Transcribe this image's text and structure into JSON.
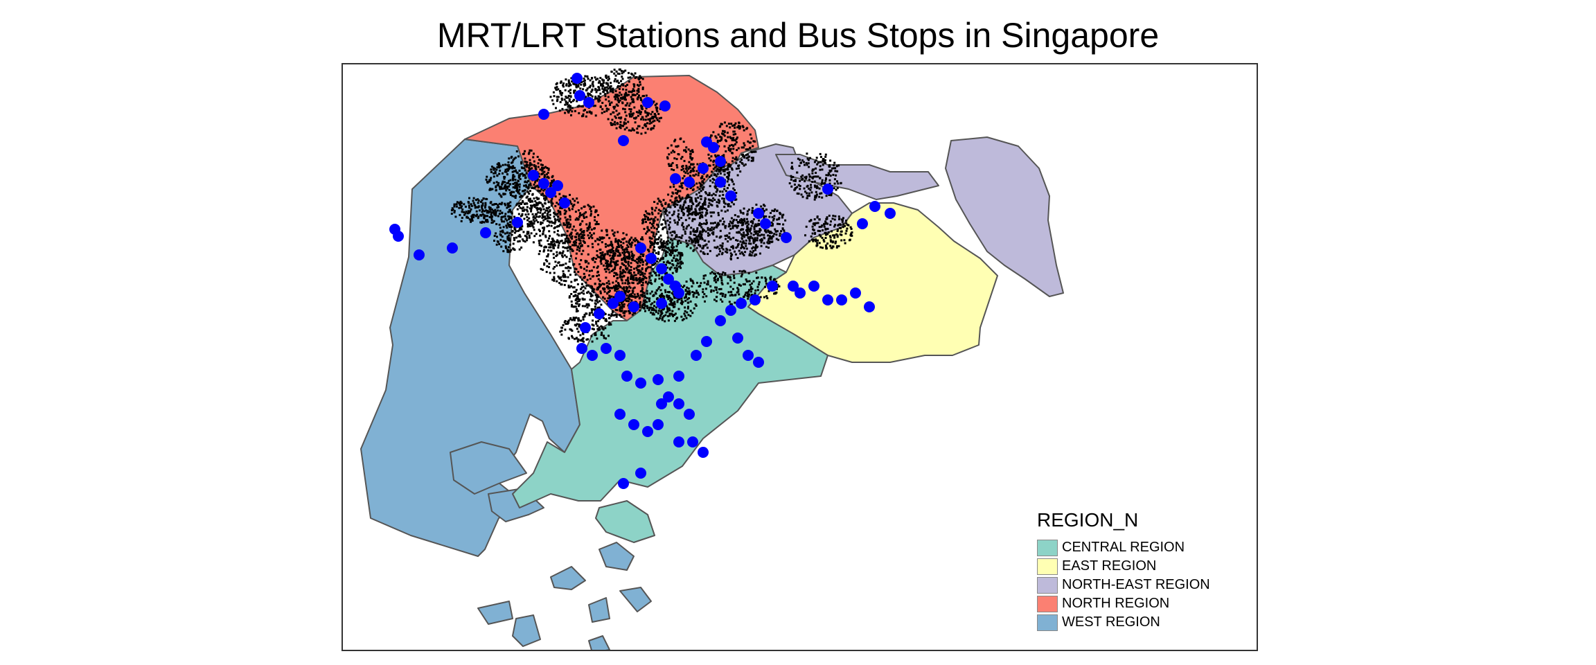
{
  "title": "MRT/LRT Stations and Bus Stops in Singapore",
  "legend": {
    "title": "REGION_N",
    "items": [
      {
        "label": "CENTRAL REGION",
        "color": "#8DD3C7"
      },
      {
        "label": "EAST REGION",
        "color": "#FFFFB3"
      },
      {
        "label": "NORTH-EAST REGION",
        "color": "#BEBADA"
      },
      {
        "label": "NORTH REGION",
        "color": "#FB8072"
      },
      {
        "label": "WEST REGION",
        "color": "#80B1D3"
      }
    ]
  },
  "layers": {
    "bus_stops": {
      "color": "#000000",
      "shape": "small-square"
    },
    "mrt_lrt_stations": {
      "color": "#0000FF",
      "shape": "circle"
    }
  }
}
